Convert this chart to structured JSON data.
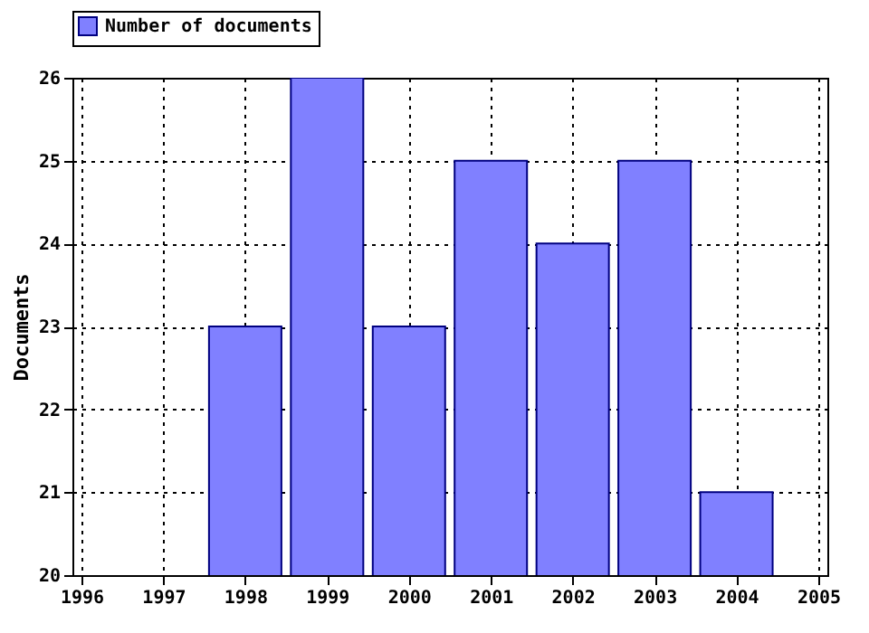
{
  "chart_data": {
    "type": "bar",
    "ylabel": "Documents",
    "x": [
      1998,
      1999,
      2000,
      2001,
      2002,
      2003,
      2004
    ],
    "series": [
      {
        "name": "Number of documents",
        "color": "#8080ff",
        "values": [
          23,
          26,
          23,
          25,
          24,
          25,
          21
        ]
      }
    ],
    "xlim": [
      1996,
      2005
    ],
    "xticks": [
      1996,
      1997,
      1998,
      1999,
      2000,
      2001,
      2002,
      2003,
      2004,
      2005
    ],
    "ylim": [
      20,
      26
    ],
    "yticks": [
      20,
      21,
      22,
      23,
      24,
      25,
      26
    ],
    "grid": true,
    "legend": "top left"
  }
}
